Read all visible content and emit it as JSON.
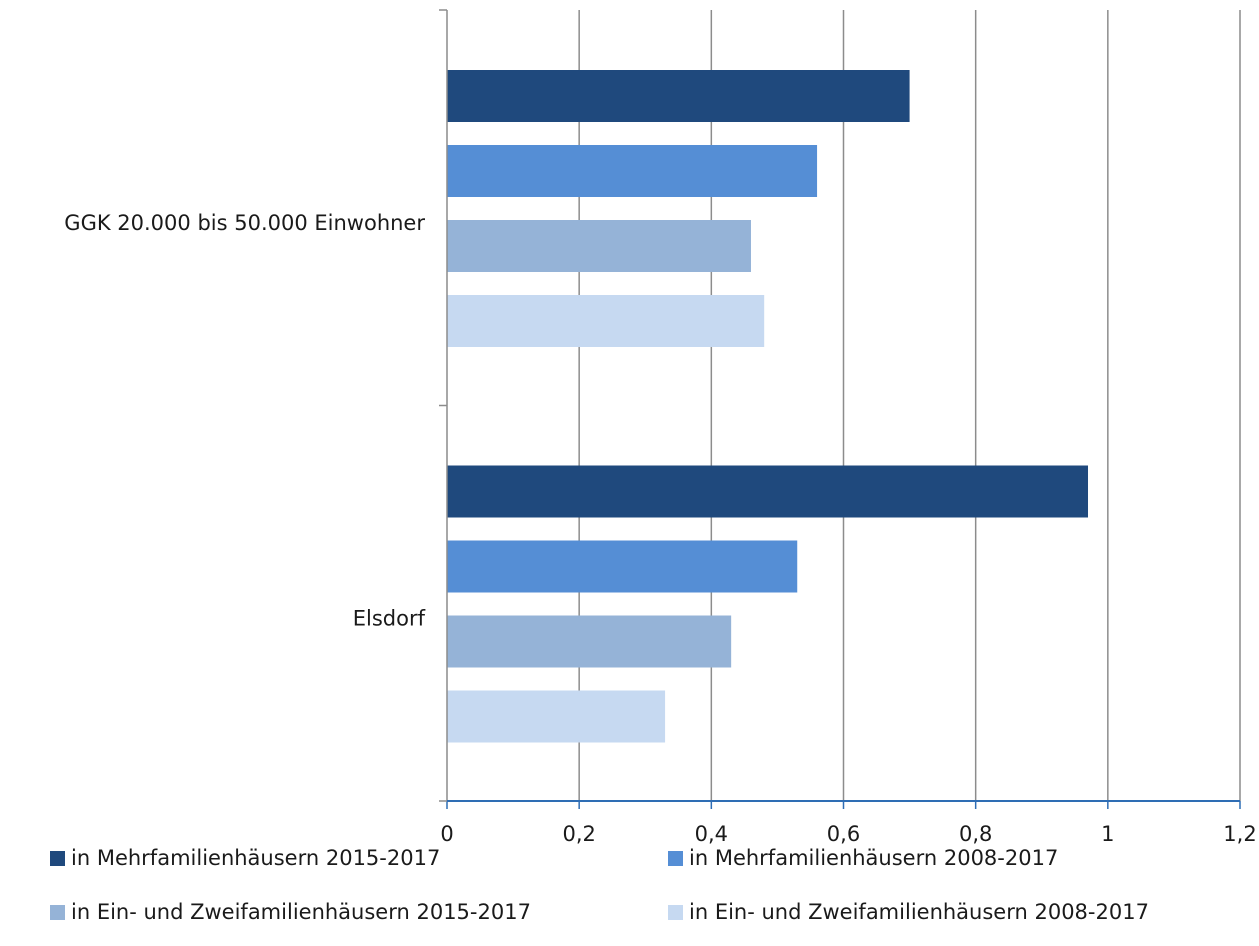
{
  "chart_data": {
    "type": "bar",
    "orientation": "horizontal",
    "categories": [
      "GGK 20.000 bis 50.000 Einwohner",
      "Elsdorf"
    ],
    "series": [
      {
        "name": "in Mehrfamilienhäusern 2015-2017",
        "color": "#1f497d",
        "values": [
          0.7,
          0.97
        ]
      },
      {
        "name": "in Mehrfamilienhäusern 2008-2017",
        "color": "#558ed5",
        "values": [
          0.56,
          0.53
        ]
      },
      {
        "name": "in Ein- und Zweifamilienhäusern 2015-2017",
        "color": "#95b3d7",
        "values": [
          0.46,
          0.43
        ]
      },
      {
        "name": "in Ein- und Zweifamilienhäusern 2008-2017",
        "color": "#c6d9f1",
        "values": [
          0.48,
          0.33
        ]
      }
    ],
    "xlim": [
      0,
      1.2
    ],
    "xticks": [
      "0",
      "0,2",
      "0,4",
      "0,6",
      "0,8",
      "1",
      "1,2"
    ],
    "grid": true,
    "legend_position": "bottom"
  }
}
